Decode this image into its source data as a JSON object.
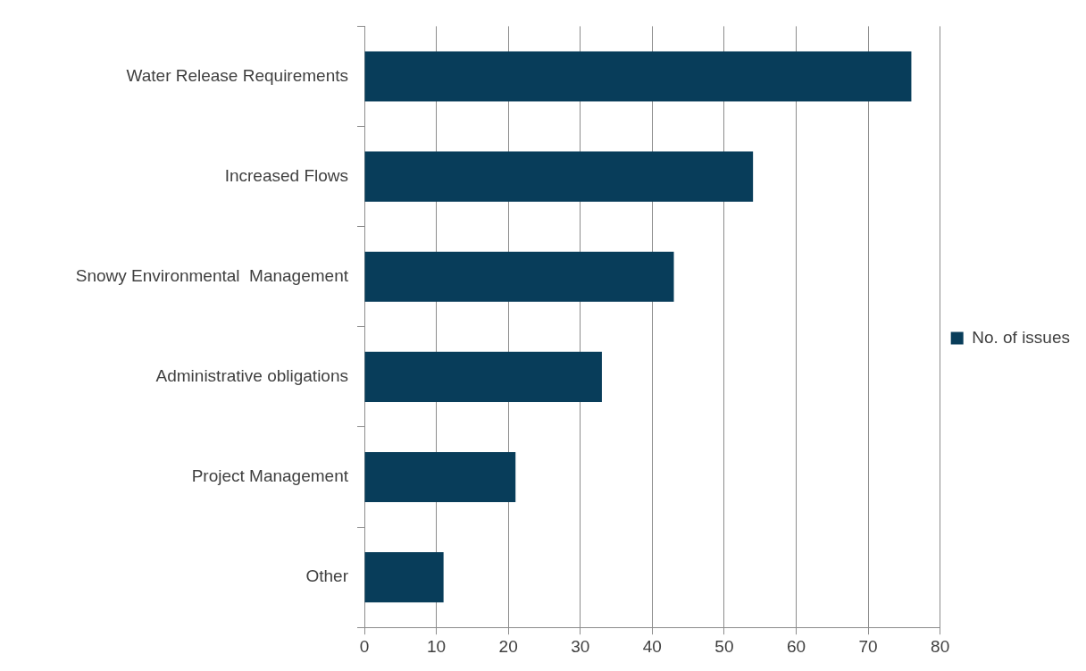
{
  "chart_data": {
    "type": "bar",
    "orientation": "horizontal",
    "categories": [
      "Water Release Requirements",
      "Increased Flows",
      "Snowy Environmental  Management",
      "Administrative obligations",
      "Project Management",
      "Other"
    ],
    "series": [
      {
        "name": "No. of issues",
        "color": "#083d5a",
        "values": [
          76,
          54,
          43,
          33,
          21,
          11
        ]
      }
    ],
    "xlim": [
      0,
      80
    ],
    "xticks": [
      0,
      10,
      20,
      30,
      40,
      50,
      60,
      70,
      80
    ],
    "grid": "x",
    "legend": "right"
  }
}
